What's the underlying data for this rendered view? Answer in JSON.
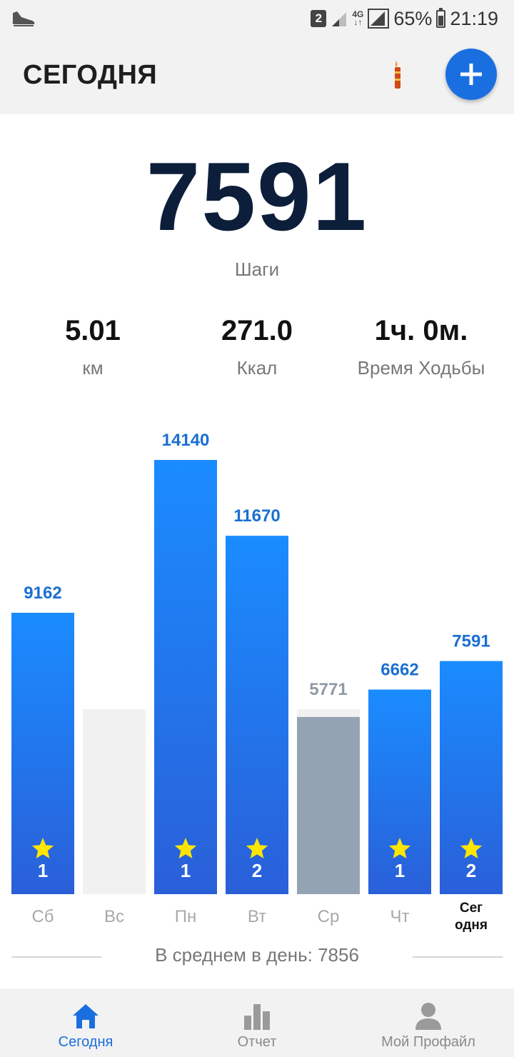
{
  "status_bar": {
    "sim": "2",
    "network": "4G",
    "battery": "65%",
    "time": "21:19"
  },
  "header": {
    "title": "СЕГОДНЯ"
  },
  "summary": {
    "steps": "7591",
    "steps_label": "Шаги",
    "distance": "5.01",
    "distance_unit": "км",
    "calories": "271.0",
    "calories_unit": "Ккал",
    "time": "1ч. 0м.",
    "time_label": "Время Ходьбы"
  },
  "chart_data": {
    "type": "bar",
    "categories": [
      "Сб",
      "Вс",
      "Пн",
      "Вт",
      "Ср",
      "Чт",
      "Сег\nодня"
    ],
    "values": [
      9162,
      null,
      14140,
      11670,
      5771,
      6662,
      7591
    ],
    "value_labels": [
      "9162",
      "",
      "14140",
      "11670",
      "5771",
      "6662",
      "7591"
    ],
    "badges": [
      "1",
      "",
      "1",
      "2",
      "",
      "1",
      "2"
    ],
    "goal_met": [
      true,
      false,
      true,
      true,
      false,
      true,
      true
    ],
    "colors": {
      "bar_top": "#1a8cff",
      "bar_bottom": "#2a5fd8",
      "bar_missed": "#94a3b3",
      "bar_empty": "#f1f1f1",
      "label_met": "#1a6fd1",
      "label_missed": "#8f9aa6",
      "star": "#ffe600"
    }
  },
  "average": {
    "text": "В среднем в день: 7856"
  },
  "bottom_nav": {
    "items": [
      {
        "label": "Сегодня",
        "icon": "home-icon",
        "active": true
      },
      {
        "label": "Отчет",
        "icon": "bar-chart-icon",
        "active": false
      },
      {
        "label": "Мой Профайл",
        "icon": "person-icon",
        "active": false
      }
    ]
  }
}
